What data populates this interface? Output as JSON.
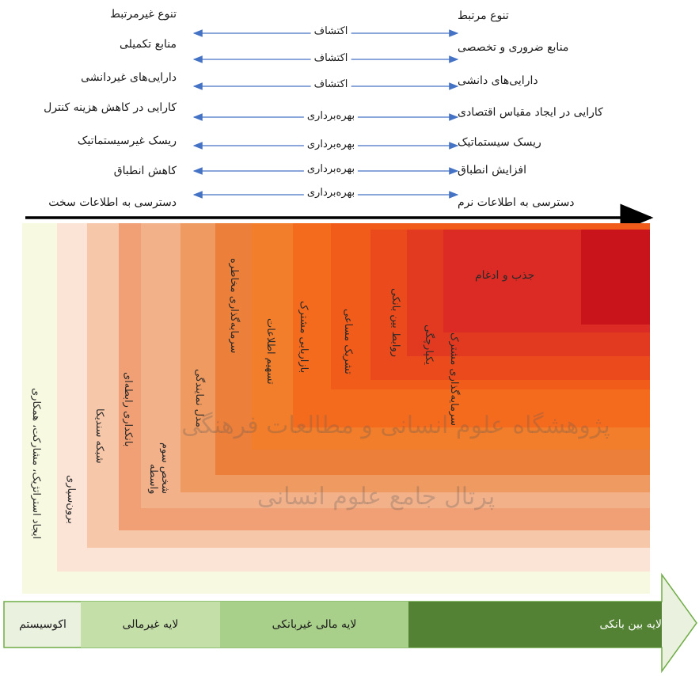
{
  "pairs": [
    {
      "left": "تنوع غیرمرتبط",
      "middle": "اکتشاف",
      "right": "تنوع مرتبط"
    },
    {
      "left": "منابع تکمیلی",
      "middle": "اکتشاف",
      "right": "منابع ضروری و تخصصی"
    },
    {
      "left": "دارایی‌های غیردانشی",
      "middle": "اکتشاف",
      "right": "دارایی‌های دانشی"
    },
    {
      "left": "کارایی در کاهش هزینه کنترل",
      "middle": "بهره‌برداری",
      "right": "کارایی در ایجاد مقیاس اقتصادی"
    },
    {
      "left": "ریسک غیرسیستماتیک",
      "middle": "بهره‌برداری",
      "right": "ریسک سیستماتیک"
    },
    {
      "left": "کاهش انطباق",
      "middle": "بهره‌برداری",
      "right": "افزایش انطباق"
    },
    {
      "left": "دسترسی به اطلاعات سخت",
      "middle": "بهره‌برداری",
      "right": "دسترسی به اطلاعات نرم"
    }
  ],
  "layers": [
    {
      "label": "ایجاد استراتژیک، مشارکت، همکاری",
      "color": "#f7f9e0"
    },
    {
      "label": "برون‌سپاری",
      "color": "#fbe3d6"
    },
    {
      "label": "شبکه سندیکا",
      "color": "#f7c7aa"
    },
    {
      "label": "بانکداری رابطه‌ای",
      "color": "#f0a074"
    },
    {
      "label": "شخص سوم واسطه",
      "color": "#f3b48e"
    },
    {
      "label": "مدل نمایندگی",
      "color": "#ef9a60"
    },
    {
      "label": "سرمایه‌گذاری مخاطره",
      "color": "#ec7f3a"
    },
    {
      "label": "تسهیم اطلاعات",
      "color": "#f27d2a"
    },
    {
      "label": "بازاریابی مشترک",
      "color": "#f56b1e"
    },
    {
      "label": "تشریک مساعی",
      "color": "#f25c1a"
    },
    {
      "label": "روابط بین بانکی",
      "color": "#ea4a1c"
    },
    {
      "label": "یکپارچگی",
      "color": "#e23a20"
    },
    {
      "label": "سرمایه‌گذاری مشترک",
      "color": "#dc2a24"
    },
    {
      "label": "جذب و ادغام",
      "color": "#d21f26"
    }
  ],
  "bands": [
    {
      "label": "اکوسیستم",
      "color": "#eaf1df"
    },
    {
      "label": "لایه غیرمالی",
      "color": "#c5dfa9"
    },
    {
      "label": "لایه مالی غیربانکی",
      "color": "#a8d08a"
    },
    {
      "label": "لایه بین بانکی",
      "color": "#548235"
    }
  ],
  "watermark": {
    "line1": "پژوهشگاه علوم انسانی و مطالعات فرهنگی",
    "line2": "پرتال جامع علوم انسانی"
  }
}
